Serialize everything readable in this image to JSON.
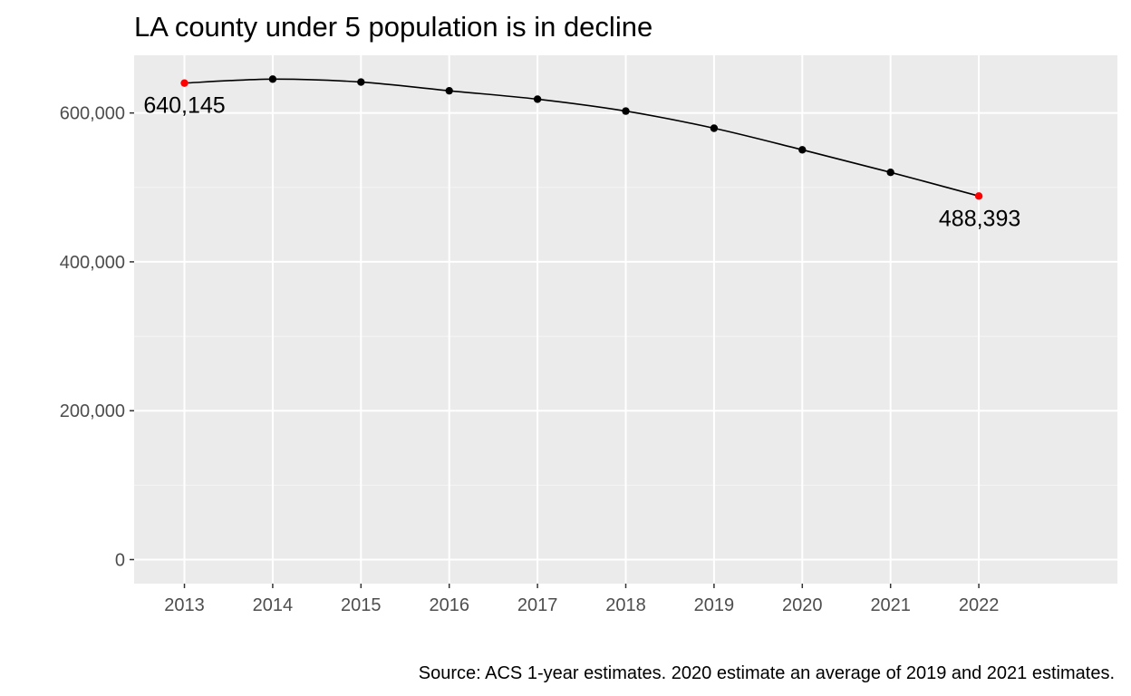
{
  "chart_data": {
    "type": "line",
    "title": "LA county under 5 population is in decline",
    "caption": "Source: ACS 1-year estimates. 2020 estimate an average of 2019 and 2021 estimates.",
    "xlabel": "",
    "ylabel": "",
    "x": [
      2013,
      2014,
      2015,
      2016,
      2017,
      2018,
      2019,
      2020,
      2021,
      2022
    ],
    "x_tick_labels": [
      "2013",
      "2014",
      "2015",
      "2016",
      "2017",
      "2018",
      "2019",
      "2020",
      "2021",
      "2022"
    ],
    "series": [
      {
        "values": [
          640145,
          645500,
          641500,
          629800,
          618500,
          602500,
          579500,
          550500,
          520200,
          488393
        ]
      }
    ],
    "highlighted_points": [
      {
        "x": 2013,
        "y": 640145,
        "label": "640,145"
      },
      {
        "x": 2022,
        "y": 488393,
        "label": "488,393"
      }
    ],
    "y_ticks": [
      0,
      200000,
      400000,
      600000
    ],
    "y_tick_labels": [
      "0",
      "200,000",
      "400,000",
      "600,000"
    ],
    "xlim": [
      2012.43,
      2023.57
    ],
    "ylim": [
      -32300,
      677500
    ],
    "grid": true,
    "legend": "none",
    "colors": {
      "panel_background": "#ebebeb",
      "grid_major": "#ffffff",
      "grid_minor": "#f5f5f5",
      "line": "#000000",
      "point": "#000000",
      "highlight_point": "#ff0000",
      "tick_label": "#4d4d4d",
      "tick_mark": "#333333"
    }
  }
}
